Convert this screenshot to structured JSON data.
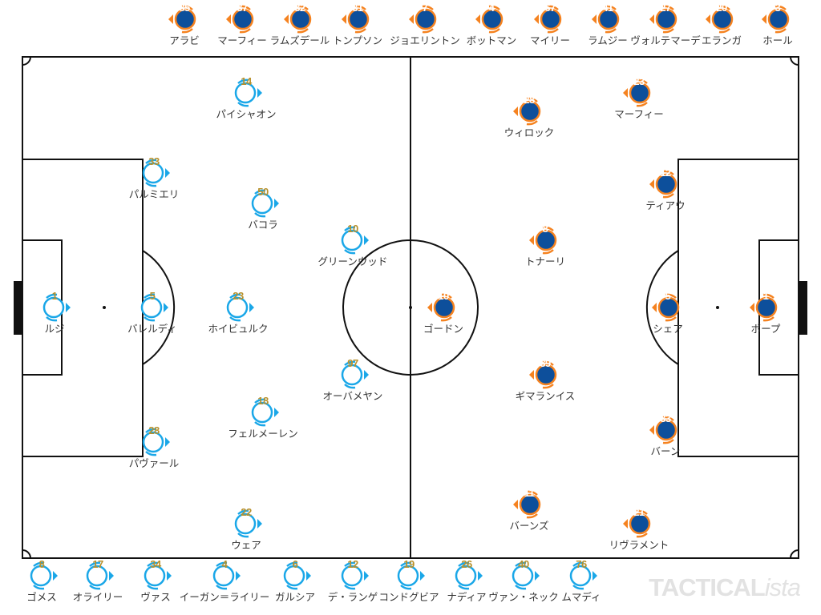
{
  "colors": {
    "home_ring": "#1aa7e8",
    "home_number": "#b8902a",
    "away_ring": "#f5821f",
    "away_fill": "#0d4f9b",
    "lines": "#111111"
  },
  "home_players": [
    {
      "num": "1",
      "name": "ルジ"
    },
    {
      "num": "5",
      "name": "バレルディ"
    },
    {
      "num": "23",
      "name": "ホイビュルク"
    },
    {
      "num": "33",
      "name": "パルミエリ"
    },
    {
      "num": "28",
      "name": "パヴァール"
    },
    {
      "num": "14",
      "name": "パイシャオン"
    },
    {
      "num": "50",
      "name": "バコラ"
    },
    {
      "num": "10",
      "name": "グリーンウッド"
    },
    {
      "num": "97",
      "name": "オーバメヤン"
    },
    {
      "num": "18",
      "name": "フェルメーレン"
    },
    {
      "num": "22",
      "name": "ウェア"
    }
  ],
  "away_players": [
    {
      "num": "1",
      "name": "ポープ"
    },
    {
      "num": "5",
      "name": "シェア"
    },
    {
      "num": "33",
      "name": "バーン"
    },
    {
      "num": "12",
      "name": "ティアウ"
    },
    {
      "num": "23",
      "name": "マーフィー"
    },
    {
      "num": "28",
      "name": "ウィロック"
    },
    {
      "num": "8",
      "name": "トナーリ"
    },
    {
      "num": "10",
      "name": "ゴードン"
    },
    {
      "num": "39",
      "name": "ギマランイス"
    },
    {
      "num": "11",
      "name": "バーンズ"
    },
    {
      "num": "21",
      "name": "リヴラメント"
    }
  ],
  "away_bench": [
    {
      "num": "85",
      "name": "アラビ"
    },
    {
      "num": "37",
      "name": "マーフィー"
    },
    {
      "num": "32",
      "name": "ラムズデール"
    },
    {
      "num": "31",
      "name": "トンプソン"
    },
    {
      "num": "7",
      "name": "ジョエリントン"
    },
    {
      "num": "4",
      "name": "ボットマン"
    },
    {
      "num": "67",
      "name": "マイリー"
    },
    {
      "num": "41",
      "name": "ラムジー"
    },
    {
      "num": "27",
      "name": "ヴォルテマーデ"
    },
    {
      "num": "20",
      "name": "エランガ"
    },
    {
      "num": "3",
      "name": "ホール"
    }
  ],
  "home_bench": [
    {
      "num": "8",
      "name": "ゴメス"
    },
    {
      "num": "17",
      "name": "オライリー"
    },
    {
      "num": "34",
      "name": "ヴァス"
    },
    {
      "num": "4",
      "name": "イーガン＝ライリー"
    },
    {
      "num": "6",
      "name": "ガルシア"
    },
    {
      "num": "12",
      "name": "デ・ランゲ"
    },
    {
      "num": "19",
      "name": "コンドグビア"
    },
    {
      "num": "26",
      "name": "ナディア"
    },
    {
      "num": "40",
      "name": "ヴァン・ネック"
    },
    {
      "num": "76",
      "name": "ムマディ"
    }
  ],
  "logo": {
    "main": "TACTICAL",
    "suffix": "ista"
  }
}
